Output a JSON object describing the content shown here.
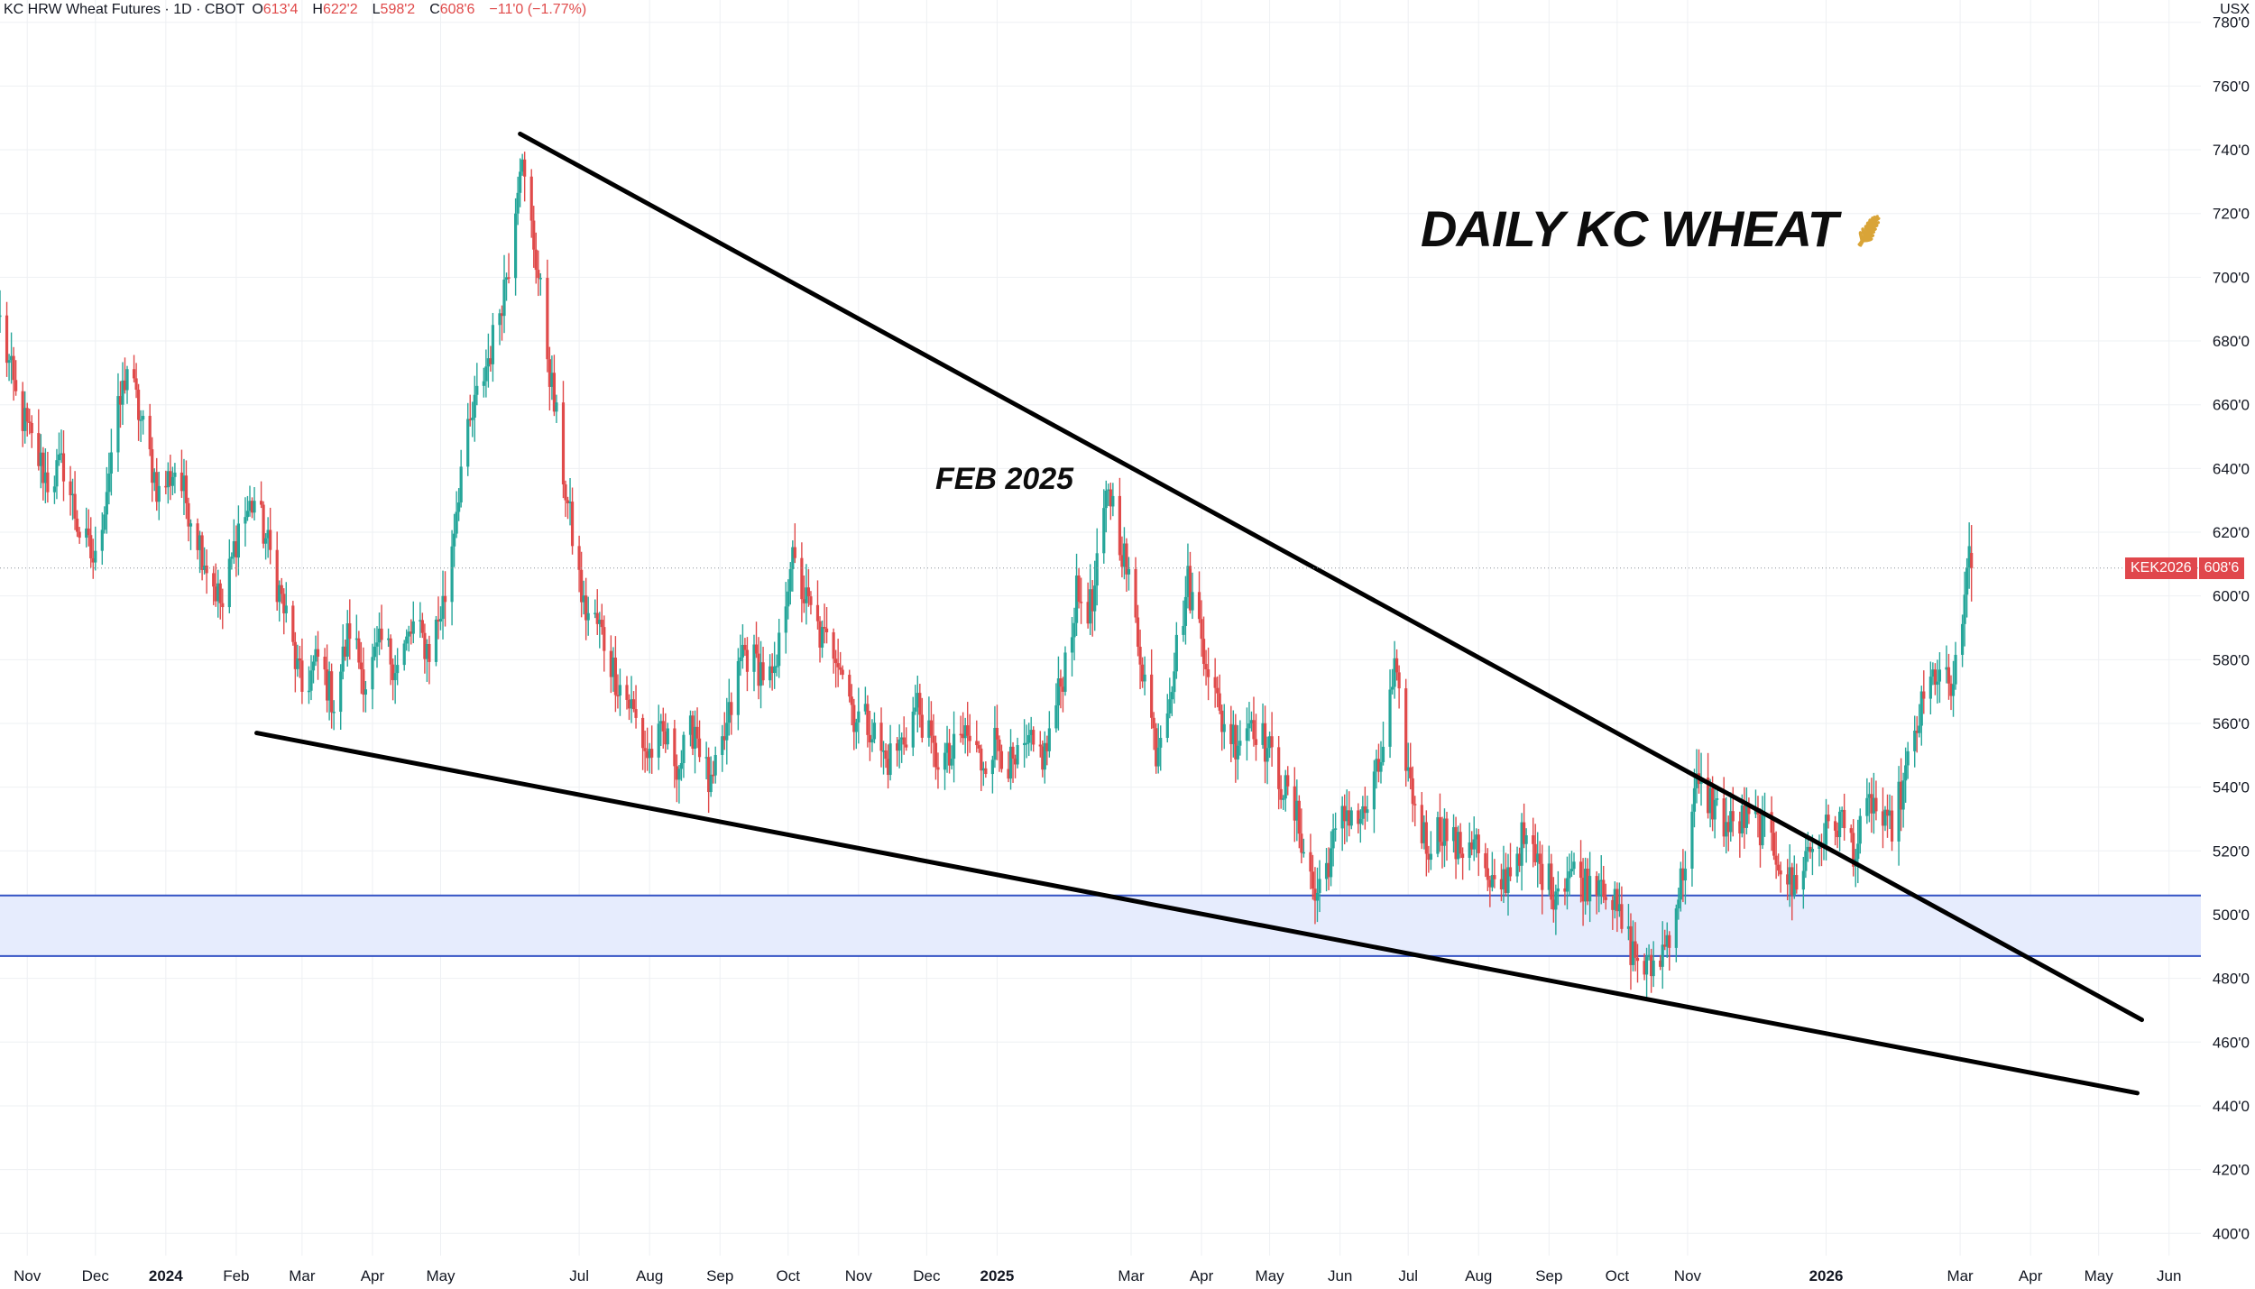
{
  "legend": {
    "symbol": "KC HRW Wheat Futures · 1D · CBOT",
    "o_label": "O",
    "o_value": "613'4",
    "h_label": "H",
    "h_value": "622'2",
    "l_label": "L",
    "l_value": "598'2",
    "c_label": "C",
    "c_value": "608'6",
    "change": "−11'0 (−1.77%)"
  },
  "currency": "USX",
  "annotations": {
    "title": "DAILY KC WHEAT",
    "title_icon": "wheat-icon",
    "label": "FEB 2025"
  },
  "price_tag": {
    "symbol": "KEK2026",
    "value": "608'6"
  },
  "colors": {
    "up": "#26a69a",
    "down": "#e04a4a",
    "trendline": "#000000",
    "zone_fill": "#e6ecfd",
    "zone_edge": "#3453c4",
    "grid": "#eef0f3"
  },
  "chart_data": {
    "type": "candlestick",
    "title": "",
    "x_range": [
      "2023-10-20",
      "2026-06-15"
    ],
    "y_range": [
      393,
      787
    ],
    "y_ticks": [
      {
        "value": 400,
        "label": "400'0"
      },
      {
        "value": 420,
        "label": "420'0"
      },
      {
        "value": 440,
        "label": "440'0"
      },
      {
        "value": 460,
        "label": "460'0"
      },
      {
        "value": 480,
        "label": "480'0"
      },
      {
        "value": 500,
        "label": "500'0"
      },
      {
        "value": 520,
        "label": "520'0"
      },
      {
        "value": 540,
        "label": "540'0"
      },
      {
        "value": 560,
        "label": "560'0"
      },
      {
        "value": 580,
        "label": "580'0"
      },
      {
        "value": 600,
        "label": "600'0"
      },
      {
        "value": 620,
        "label": "620'0"
      },
      {
        "value": 640,
        "label": "640'0"
      },
      {
        "value": 660,
        "label": "660'0"
      },
      {
        "value": 680,
        "label": "680'0"
      },
      {
        "value": 700,
        "label": "700'0"
      },
      {
        "value": 720,
        "label": "720'0"
      },
      {
        "value": 740,
        "label": "740'0"
      },
      {
        "value": 760,
        "label": "760'0"
      },
      {
        "value": 780,
        "label": "780'0"
      }
    ],
    "x_ticks": [
      {
        "date": "2023-11-01",
        "label": "Nov",
        "bold": false
      },
      {
        "date": "2023-12-01",
        "label": "Dec",
        "bold": false
      },
      {
        "date": "2024-01-01",
        "label": "2024",
        "bold": true
      },
      {
        "date": "2024-02-01",
        "label": "Feb",
        "bold": false
      },
      {
        "date": "2024-03-01",
        "label": "Mar",
        "bold": false
      },
      {
        "date": "2024-04-01",
        "label": "Apr",
        "bold": false
      },
      {
        "date": "2024-05-01",
        "label": "May",
        "bold": false
      },
      {
        "date": "2024-07-01",
        "label": "Jul",
        "bold": false
      },
      {
        "date": "2024-08-01",
        "label": "Aug",
        "bold": false
      },
      {
        "date": "2024-09-01",
        "label": "Sep",
        "bold": false
      },
      {
        "date": "2024-10-01",
        "label": "Oct",
        "bold": false
      },
      {
        "date": "2024-11-01",
        "label": "Nov",
        "bold": false
      },
      {
        "date": "2024-12-01",
        "label": "Dec",
        "bold": false
      },
      {
        "date": "2025-01-01",
        "label": "2025",
        "bold": true
      },
      {
        "date": "2025-03-01",
        "label": "Mar",
        "bold": false
      },
      {
        "date": "2025-04-01",
        "label": "Apr",
        "bold": false
      },
      {
        "date": "2025-05-01",
        "label": "May",
        "bold": false
      },
      {
        "date": "2025-06-01",
        "label": "Jun",
        "bold": false
      },
      {
        "date": "2025-07-01",
        "label": "Jul",
        "bold": false
      },
      {
        "date": "2025-08-01",
        "label": "Aug",
        "bold": false
      },
      {
        "date": "2025-09-01",
        "label": "Sep",
        "bold": false
      },
      {
        "date": "2025-10-01",
        "label": "Oct",
        "bold": false
      },
      {
        "date": "2025-11-01",
        "label": "Nov",
        "bold": false
      },
      {
        "date": "2026-01-01",
        "label": "2026",
        "bold": true
      },
      {
        "date": "2026-03-01",
        "label": "Mar",
        "bold": false
      },
      {
        "date": "2026-04-01",
        "label": "Apr",
        "bold": false
      },
      {
        "date": "2026-05-01",
        "label": "May",
        "bold": false
      },
      {
        "date": "2026-06-01",
        "label": "Jun",
        "bold": false
      }
    ],
    "price_path": [
      {
        "date": "2023-10-20",
        "close": 686
      },
      {
        "date": "2023-10-27",
        "close": 662
      },
      {
        "date": "2023-11-03",
        "close": 648
      },
      {
        "date": "2023-11-10",
        "close": 636
      },
      {
        "date": "2023-11-17",
        "close": 641
      },
      {
        "date": "2023-11-24",
        "close": 620
      },
      {
        "date": "2023-12-01",
        "close": 610
      },
      {
        "date": "2023-12-08",
        "close": 645
      },
      {
        "date": "2023-12-15",
        "close": 672
      },
      {
        "date": "2023-12-22",
        "close": 652
      },
      {
        "date": "2023-12-29",
        "close": 632
      },
      {
        "date": "2024-01-05",
        "close": 640
      },
      {
        "date": "2024-01-12",
        "close": 626
      },
      {
        "date": "2024-01-19",
        "close": 610
      },
      {
        "date": "2024-01-26",
        "close": 596
      },
      {
        "date": "2024-02-02",
        "close": 622
      },
      {
        "date": "2024-02-09",
        "close": 630
      },
      {
        "date": "2024-02-16",
        "close": 613
      },
      {
        "date": "2024-02-23",
        "close": 593
      },
      {
        "date": "2024-03-01",
        "close": 570
      },
      {
        "date": "2024-03-08",
        "close": 580
      },
      {
        "date": "2024-03-15",
        "close": 567
      },
      {
        "date": "2024-03-22",
        "close": 590
      },
      {
        "date": "2024-03-29",
        "close": 573
      },
      {
        "date": "2024-04-05",
        "close": 585
      },
      {
        "date": "2024-04-12",
        "close": 578
      },
      {
        "date": "2024-04-19",
        "close": 590
      },
      {
        "date": "2024-04-26",
        "close": 583
      },
      {
        "date": "2024-05-03",
        "close": 600
      },
      {
        "date": "2024-05-10",
        "close": 640
      },
      {
        "date": "2024-05-17",
        "close": 662
      },
      {
        "date": "2024-05-24",
        "close": 680
      },
      {
        "date": "2024-05-31",
        "close": 705
      },
      {
        "date": "2024-06-05",
        "close": 738
      },
      {
        "date": "2024-06-12",
        "close": 706
      },
      {
        "date": "2024-06-19",
        "close": 665
      },
      {
        "date": "2024-06-26",
        "close": 628
      },
      {
        "date": "2024-07-03",
        "close": 596
      },
      {
        "date": "2024-07-10",
        "close": 590
      },
      {
        "date": "2024-07-17",
        "close": 575
      },
      {
        "date": "2024-07-24",
        "close": 565
      },
      {
        "date": "2024-07-31",
        "close": 550
      },
      {
        "date": "2024-08-07",
        "close": 556
      },
      {
        "date": "2024-08-14",
        "close": 547
      },
      {
        "date": "2024-08-21",
        "close": 560
      },
      {
        "date": "2024-08-28",
        "close": 538
      },
      {
        "date": "2024-09-04",
        "close": 558
      },
      {
        "date": "2024-09-11",
        "close": 583
      },
      {
        "date": "2024-09-18",
        "close": 578
      },
      {
        "date": "2024-09-25",
        "close": 572
      },
      {
        "date": "2024-10-02",
        "close": 612
      },
      {
        "date": "2024-10-09",
        "close": 598
      },
      {
        "date": "2024-10-16",
        "close": 586
      },
      {
        "date": "2024-10-23",
        "close": 583
      },
      {
        "date": "2024-10-30",
        "close": 563
      },
      {
        "date": "2024-11-06",
        "close": 560
      },
      {
        "date": "2024-11-13",
        "close": 548
      },
      {
        "date": "2024-11-20",
        "close": 554
      },
      {
        "date": "2024-11-27",
        "close": 566
      },
      {
        "date": "2024-12-04",
        "close": 550
      },
      {
        "date": "2024-12-11",
        "close": 548
      },
      {
        "date": "2024-12-18",
        "close": 557
      },
      {
        "date": "2024-12-25",
        "close": 548
      },
      {
        "date": "2025-01-01",
        "close": 555
      },
      {
        "date": "2025-01-08",
        "close": 545
      },
      {
        "date": "2025-01-15",
        "close": 552
      },
      {
        "date": "2025-01-22",
        "close": 550
      },
      {
        "date": "2025-01-29",
        "close": 572
      },
      {
        "date": "2025-02-05",
        "close": 600
      },
      {
        "date": "2025-02-12",
        "close": 596
      },
      {
        "date": "2025-02-19",
        "close": 635
      },
      {
        "date": "2025-02-26",
        "close": 612
      },
      {
        "date": "2025-03-05",
        "close": 583
      },
      {
        "date": "2025-03-12",
        "close": 552
      },
      {
        "date": "2025-03-19",
        "close": 575
      },
      {
        "date": "2025-03-26",
        "close": 604
      },
      {
        "date": "2025-04-02",
        "close": 585
      },
      {
        "date": "2025-04-09",
        "close": 562
      },
      {
        "date": "2025-04-16",
        "close": 555
      },
      {
        "date": "2025-04-23",
        "close": 562
      },
      {
        "date": "2025-04-30",
        "close": 552
      },
      {
        "date": "2025-05-07",
        "close": 540
      },
      {
        "date": "2025-05-14",
        "close": 528
      },
      {
        "date": "2025-05-21",
        "close": 505
      },
      {
        "date": "2025-05-28",
        "close": 520
      },
      {
        "date": "2025-06-04",
        "close": 533
      },
      {
        "date": "2025-06-11",
        "close": 530
      },
      {
        "date": "2025-06-18",
        "close": 545
      },
      {
        "date": "2025-06-25",
        "close": 575
      },
      {
        "date": "2025-07-02",
        "close": 540
      },
      {
        "date": "2025-07-09",
        "close": 522
      },
      {
        "date": "2025-07-16",
        "close": 528
      },
      {
        "date": "2025-07-23",
        "close": 520
      },
      {
        "date": "2025-07-30",
        "close": 525
      },
      {
        "date": "2025-08-06",
        "close": 506
      },
      {
        "date": "2025-08-13",
        "close": 512
      },
      {
        "date": "2025-08-20",
        "close": 523
      },
      {
        "date": "2025-08-27",
        "close": 516
      },
      {
        "date": "2025-09-03",
        "close": 508
      },
      {
        "date": "2025-09-10",
        "close": 514
      },
      {
        "date": "2025-09-17",
        "close": 510
      },
      {
        "date": "2025-09-24",
        "close": 513
      },
      {
        "date": "2025-10-01",
        "close": 500
      },
      {
        "date": "2025-10-08",
        "close": 488
      },
      {
        "date": "2025-10-15",
        "close": 482
      },
      {
        "date": "2025-10-22",
        "close": 490
      },
      {
        "date": "2025-10-29",
        "close": 510
      },
      {
        "date": "2025-11-05",
        "close": 540
      },
      {
        "date": "2025-11-12",
        "close": 535
      },
      {
        "date": "2025-11-19",
        "close": 527
      },
      {
        "date": "2025-11-26",
        "close": 530
      },
      {
        "date": "2025-12-03",
        "close": 528
      },
      {
        "date": "2025-12-10",
        "close": 520
      },
      {
        "date": "2025-12-17",
        "close": 508
      },
      {
        "date": "2025-12-24",
        "close": 520
      },
      {
        "date": "2025-12-31",
        "close": 525
      },
      {
        "date": "2026-01-07",
        "close": 530
      },
      {
        "date": "2026-01-14",
        "close": 520
      },
      {
        "date": "2026-01-21",
        "close": 536
      },
      {
        "date": "2026-01-28",
        "close": 525
      },
      {
        "date": "2026-02-04",
        "close": 540
      },
      {
        "date": "2026-02-11",
        "close": 562
      },
      {
        "date": "2026-02-18",
        "close": 576
      },
      {
        "date": "2026-02-25",
        "close": 570
      },
      {
        "date": "2026-03-02",
        "close": 586
      },
      {
        "date": "2026-03-05",
        "close": 620
      },
      {
        "date": "2026-03-06",
        "close": 608.75
      }
    ],
    "trendlines": [
      {
        "name": "upper",
        "from": {
          "date": "2024-06-05",
          "value": 745
        },
        "to": {
          "date": "2026-05-20",
          "value": 467
        }
      },
      {
        "name": "lower",
        "from": {
          "date": "2024-02-10",
          "value": 557
        },
        "to": {
          "date": "2026-05-18",
          "value": 444
        }
      }
    ],
    "zone": {
      "low": 487,
      "high": 506
    },
    "last_price": 608.75,
    "grid": true
  }
}
